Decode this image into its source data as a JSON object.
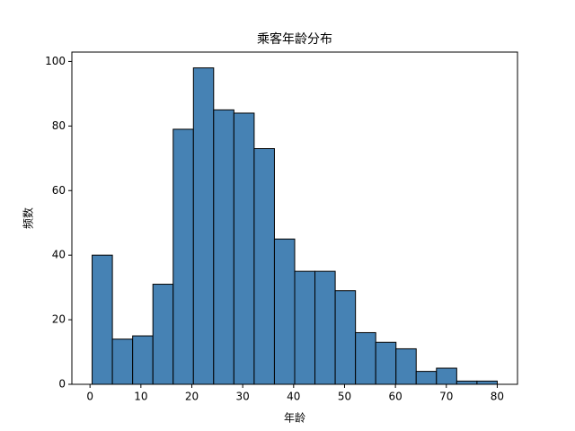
{
  "chart_data": {
    "type": "histogram",
    "title": "乘客年龄分布",
    "x_label": "年龄",
    "y_label": "频数",
    "bins": [
      0.42,
      4.4,
      8.38,
      12.36,
      16.34,
      20.32,
      24.29,
      28.27,
      32.25,
      36.23,
      40.21,
      44.19,
      48.17,
      52.15,
      56.13,
      60.11,
      64.08,
      68.06,
      72.04,
      76.02,
      80
    ],
    "values": [
      40,
      14,
      15,
      31,
      79,
      98,
      85,
      84,
      73,
      45,
      35,
      35,
      29,
      16,
      13,
      11,
      4,
      5,
      1,
      1
    ],
    "color": "#4682b4",
    "edgecolor": "#000000",
    "xlim": [
      -3.56,
      83.98
    ],
    "ylim": [
      0,
      102.9
    ],
    "xticks": [
      0,
      10,
      20,
      30,
      40,
      50,
      60,
      70,
      80
    ],
    "yticks": [
      0,
      20,
      40,
      60,
      80,
      100
    ]
  }
}
